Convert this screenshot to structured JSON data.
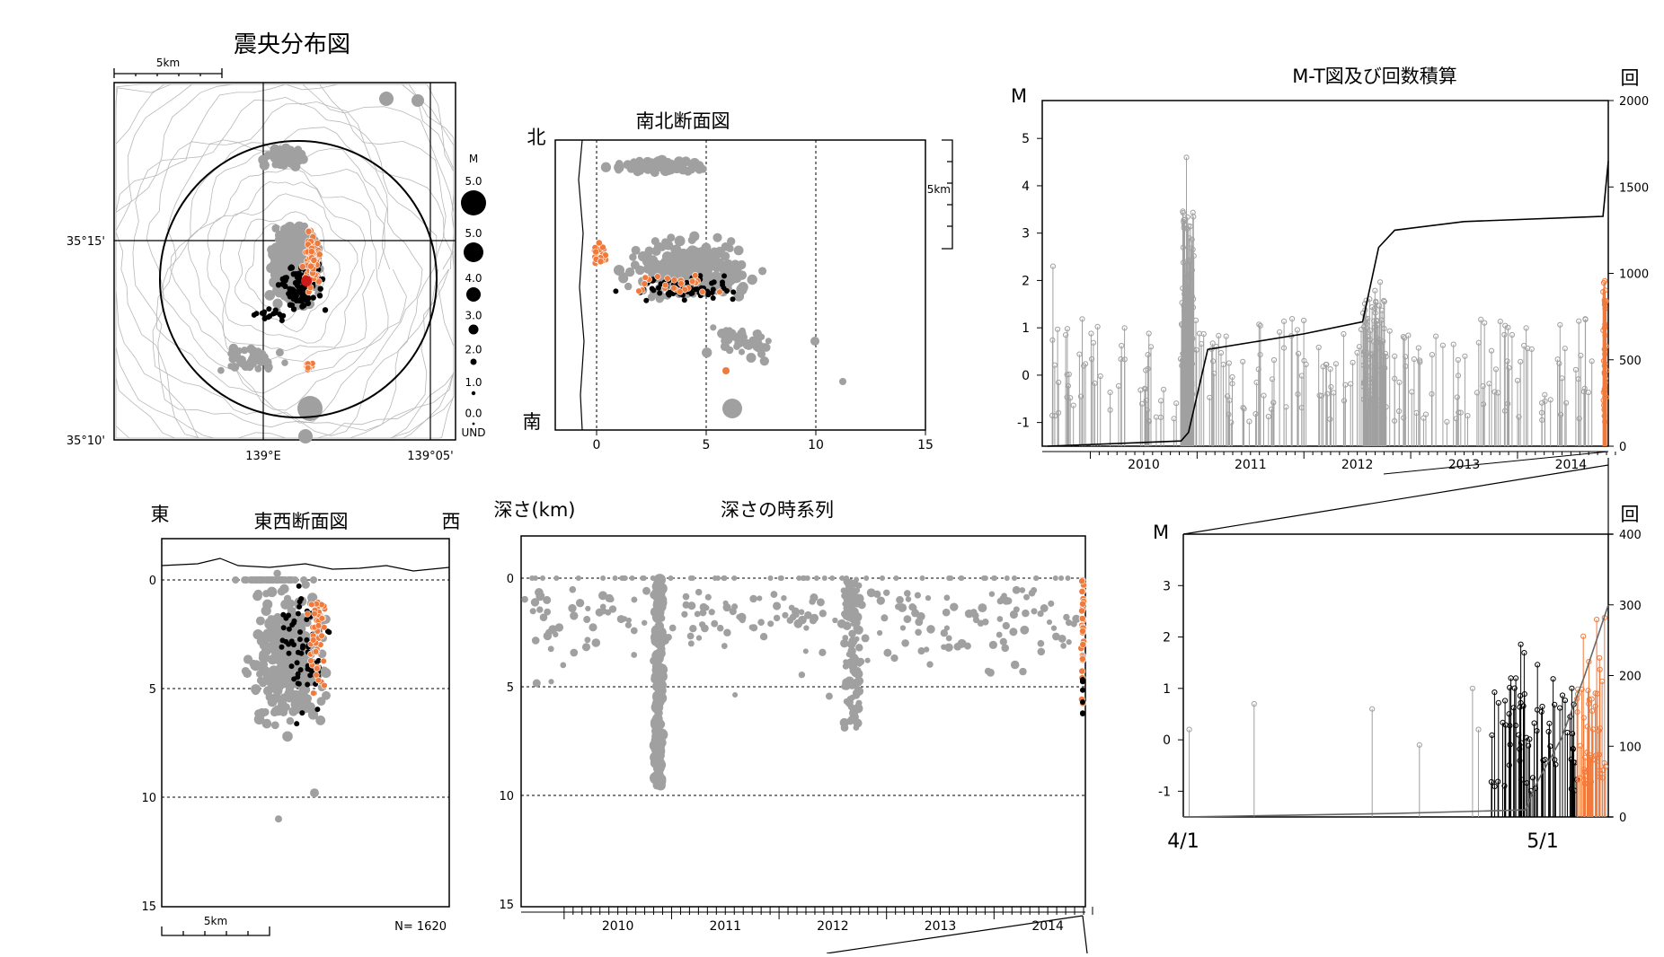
{
  "colors": {
    "old": "#a0a0a0",
    "recent": "#000000",
    "latest": "#f07a3c",
    "max": "#cc1a1a",
    "frame": "#000000",
    "contour": "#b8b8b8"
  },
  "chart_data": [
    {
      "type": "scatter",
      "title": "震央分布図",
      "scale_label": "5km",
      "xticks": [
        "139°E",
        "139°05'"
      ],
      "yticks": [
        "35°15'",
        "35°10'"
      ],
      "legend": {
        "title": "M",
        "labels": [
          "5.0",
          "5.0",
          "4.0",
          "3.0",
          "2.0",
          "1.0",
          "0.0",
          "UND"
        ]
      }
    },
    {
      "type": "scatter",
      "title": "南北断面図",
      "north_label": "北",
      "south_label": "南",
      "scale_label": "5km",
      "xticks": [
        "0",
        "5",
        "10",
        "15"
      ],
      "xlim": [
        -2,
        15
      ]
    },
    {
      "type": "line",
      "title": "M-T図及び回数積算",
      "ylabel": "M",
      "y2label": "回",
      "yticks": [
        "5",
        "4",
        "3",
        "2",
        "1",
        "0",
        "-1"
      ],
      "y2ticks": [
        "2000",
        "1500",
        "1000",
        "500",
        "0"
      ],
      "xticks": [
        "2010",
        "2011",
        "2012",
        "2013",
        "2014"
      ],
      "ylim": [
        -1.5,
        5.8
      ],
      "y2lim": [
        0,
        2000
      ],
      "series": [
        {
          "name": "",
          "x": [
            2009.6,
            2010.85,
            2010.92,
            2011.1,
            2012.0,
            2012.55,
            2012.7,
            2012.85,
            2013.5,
            2014.8,
            2014.85
          ],
          "values": [
            0,
            30,
            80,
            560,
            650,
            720,
            1150,
            1250,
            1300,
            1330,
            1650
          ]
        }
      ]
    },
    {
      "type": "line",
      "ylabel": "M",
      "y2label": "回",
      "yticks": [
        "3",
        "2",
        "1",
        "0",
        "-1"
      ],
      "y2ticks": [
        "400",
        "300",
        "200",
        "100",
        "0"
      ],
      "xticks": [
        "4/1",
        "5/1"
      ],
      "ylim": [
        -1.5,
        4
      ],
      "y2lim": [
        0,
        400
      ],
      "series": [
        {
          "name": "",
          "x": [
            0,
            18,
            29,
            30,
            31,
            32,
            34,
            36
          ],
          "values": [
            0,
            5,
            10,
            50,
            80,
            110,
            200,
            300
          ]
        }
      ]
    },
    {
      "type": "scatter",
      "title": "東西断面図",
      "east_label": "東",
      "west_label": "西",
      "scale_label": "5km",
      "count_label": "N= 1620",
      "yticks": [
        "0",
        "5",
        "10",
        "15"
      ],
      "ylim": [
        0,
        15
      ]
    },
    {
      "type": "scatter",
      "title": "深さの時系列",
      "ylabel": "深さ(km)",
      "yticks": [
        "0",
        "5",
        "10",
        "15"
      ],
      "xticks": [
        "2010",
        "2011",
        "2012",
        "2013",
        "2014"
      ],
      "ylim": [
        0,
        15
      ]
    }
  ]
}
